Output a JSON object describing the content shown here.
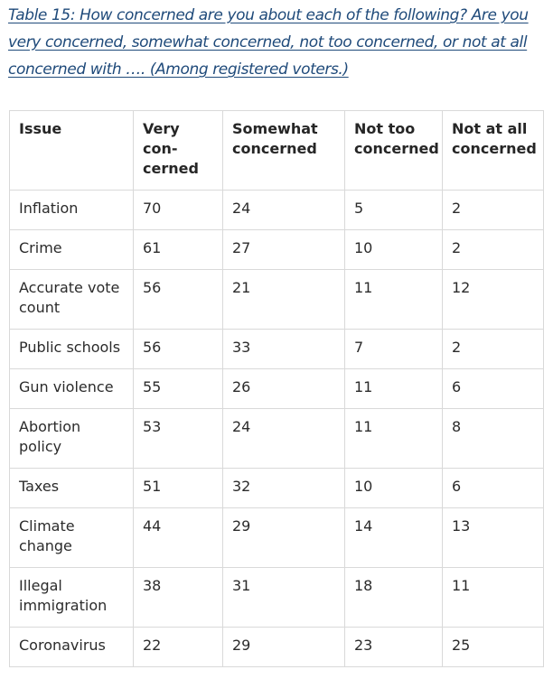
{
  "caption": "Table 15: How concerned are you about each of the following? Are you very concerned, somewhat concerned, not too concerned, or not at all concerned with …. (Among registered voters.)",
  "table": {
    "headers": [
      "Issue",
      "Very con-cerned",
      "Somewhat concerned",
      "Not too concerned",
      "Not at all concerned"
    ],
    "rows": [
      [
        "Inflation",
        "70",
        "24",
        "5",
        "2"
      ],
      [
        "Crime",
        "61",
        "27",
        "10",
        "2"
      ],
      [
        "Accurate vote count",
        "56",
        "21",
        "11",
        "12"
      ],
      [
        "Public schools",
        "56",
        "33",
        "7",
        "2"
      ],
      [
        "Gun violence",
        "55",
        "26",
        "11",
        "6"
      ],
      [
        "Abortion policy",
        "53",
        "24",
        "11",
        "8"
      ],
      [
        "Taxes",
        "51",
        "32",
        "10",
        "6"
      ],
      [
        "Climate change",
        "44",
        "29",
        "14",
        "13"
      ],
      [
        "Illegal immigration",
        "38",
        "31",
        "18",
        "11"
      ],
      [
        "Coronavirus",
        "22",
        "29",
        "23",
        "25"
      ]
    ]
  },
  "colors": {
    "caption": "#1f4a7a",
    "border": "#d9d9d9",
    "text": "#2b2b2b"
  }
}
